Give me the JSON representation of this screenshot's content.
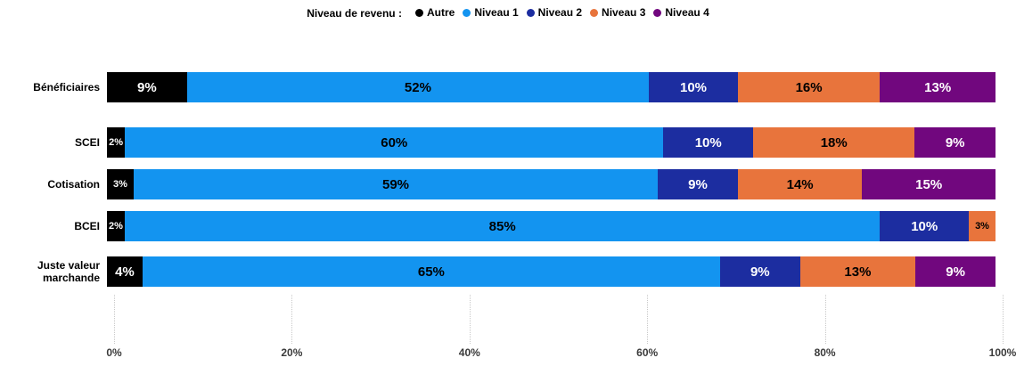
{
  "legend": {
    "title": "Niveau de revenu :",
    "items": [
      {
        "label": "Autre",
        "color": "#000000",
        "text_color": "#ffffff"
      },
      {
        "label": "Niveau 1",
        "color": "#1394F0",
        "text_color": "#000000"
      },
      {
        "label": "Niveau 2",
        "color": "#1C2DA0",
        "text_color": "#ffffff"
      },
      {
        "label": "Niveau 3",
        "color": "#E8743C",
        "text_color": "#000000"
      },
      {
        "label": "Niveau 4",
        "color": "#71077E",
        "text_color": "#ffffff"
      }
    ]
  },
  "chart_data": {
    "type": "bar",
    "orientation": "horizontal-stacked",
    "title": "",
    "legend_title": "Niveau de revenu :",
    "legend_position": "top-center",
    "grid": "dotted-vertical",
    "xlim": [
      0,
      100
    ],
    "x_ticks": [
      "0%",
      "20%",
      "40%",
      "60%",
      "80%",
      "100%"
    ],
    "categories": [
      "Bénéficiaires",
      "SCEI",
      "Cotisation",
      "BCEI",
      "Juste valeur marchande"
    ],
    "series": [
      {
        "name": "Autre",
        "values": [
          9,
          2,
          3,
          2,
          4
        ]
      },
      {
        "name": "Niveau 1",
        "values": [
          52,
          60,
          59,
          85,
          65
        ]
      },
      {
        "name": "Niveau 2",
        "values": [
          10,
          10,
          9,
          10,
          9
        ]
      },
      {
        "name": "Niveau 3",
        "values": [
          16,
          18,
          14,
          3,
          13
        ]
      },
      {
        "name": "Niveau 4",
        "values": [
          13,
          9,
          15,
          0,
          9
        ]
      }
    ],
    "value_label_format": "{value}%"
  }
}
